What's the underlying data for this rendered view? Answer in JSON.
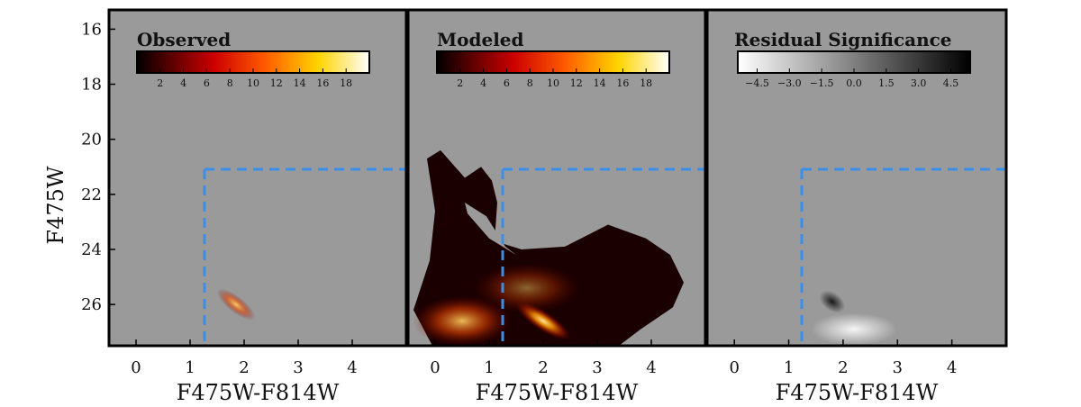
{
  "chart_data": [
    {
      "type": "heatmap",
      "title": "Observed",
      "xlabel": "F475W-F814W",
      "ylabel": "F475W",
      "xlim": [
        -0.5,
        5.0
      ],
      "ylim": [
        27.5,
        15.3
      ],
      "xticks": [
        "0",
        "1",
        "2",
        "3",
        "4"
      ],
      "yticks": [
        "16",
        "18",
        "20",
        "22",
        "24",
        "26"
      ],
      "colorbar": {
        "colormap": "hot",
        "range": [
          0,
          20
        ],
        "ticks": [
          "2",
          "4",
          "6",
          "8",
          "10",
          "12",
          "14",
          "16",
          "18"
        ]
      },
      "cut_lines": {
        "color": "#3b8ee8",
        "vertical_x": 1.25,
        "horizontal_y": 21.0
      }
    },
    {
      "type": "heatmap",
      "title": "Modeled",
      "xlabel": "F475W-F814W",
      "ylabel": "",
      "xlim": [
        -0.5,
        5.0
      ],
      "ylim": [
        27.5,
        15.3
      ],
      "xticks": [
        "0",
        "1",
        "2",
        "3",
        "4"
      ],
      "colorbar": {
        "colormap": "hot",
        "range": [
          0,
          20
        ],
        "ticks": [
          "2",
          "4",
          "6",
          "8",
          "10",
          "12",
          "14",
          "16",
          "18"
        ]
      },
      "cut_lines": {
        "color": "#3b8ee8",
        "vertical_x": 1.25,
        "horizontal_y": 21.0
      }
    },
    {
      "type": "heatmap",
      "title": "Residual Significance",
      "xlabel": "F475W-F814W",
      "ylabel": "",
      "xlim": [
        -0.5,
        5.0
      ],
      "ylim": [
        27.5,
        15.3
      ],
      "xticks": [
        "0",
        "1",
        "2",
        "3",
        "4"
      ],
      "colorbar": {
        "colormap": "gray_r",
        "range": [
          -5.4,
          5.4
        ],
        "ticks": [
          "−4.5",
          "−3.0",
          "−1.5",
          "0.0",
          "1.5",
          "3.0",
          "4.5"
        ]
      },
      "cut_lines": {
        "color": "#3b8ee8",
        "vertical_x": 1.25,
        "horizontal_y": 21.0
      }
    }
  ]
}
